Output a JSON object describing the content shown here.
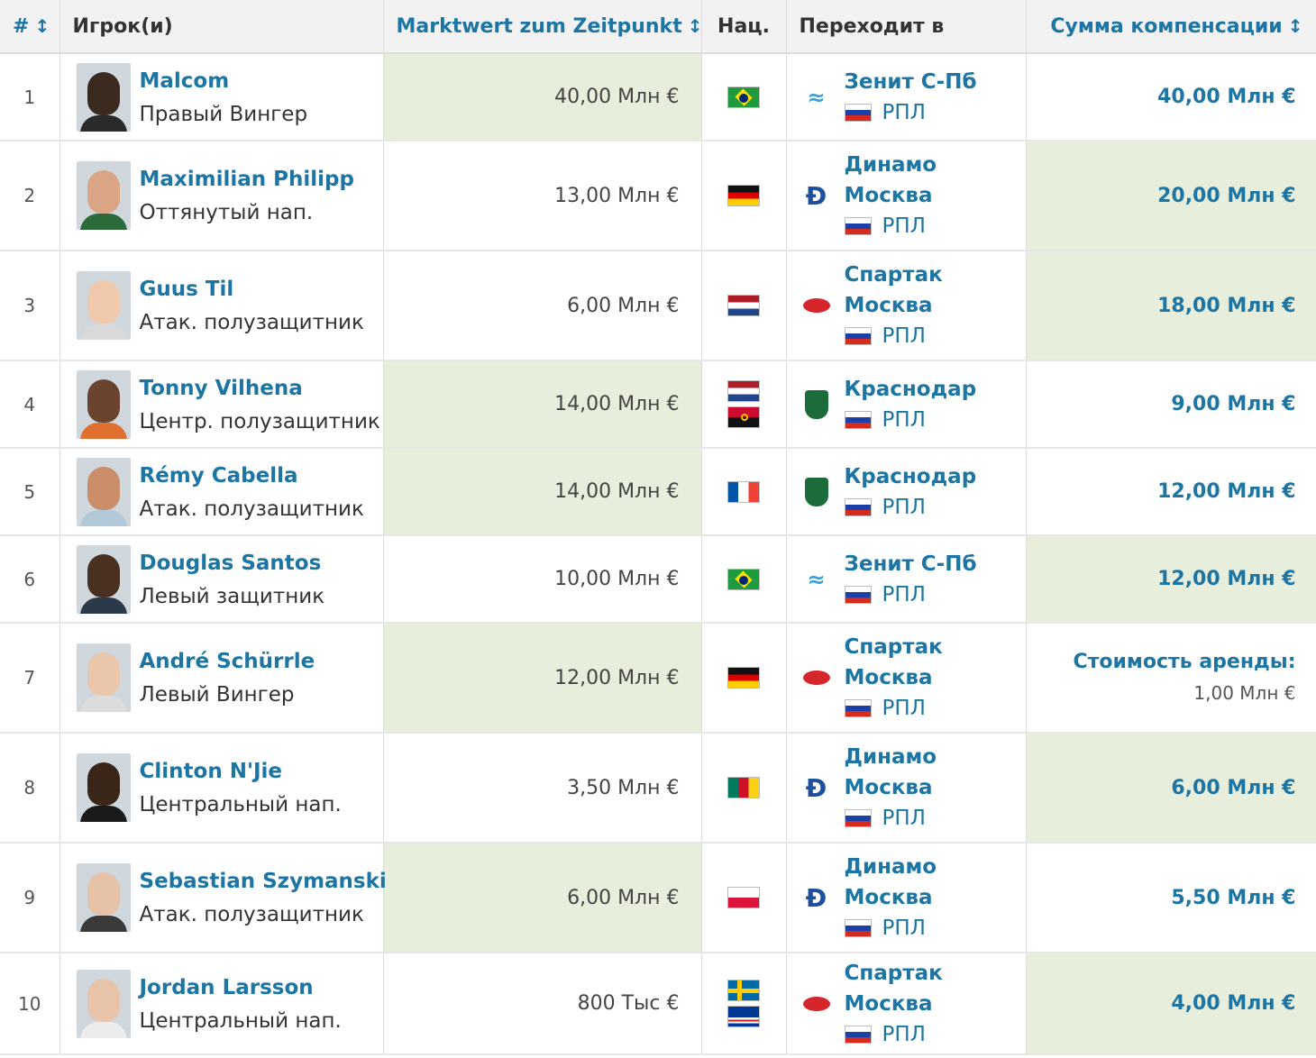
{
  "header": {
    "num": "#",
    "player": "Игрок(и)",
    "market_value": "Marktwert zum Zeitpunkt",
    "nat": "Нац.",
    "moves_to": "Переходит в",
    "fee": "Сумма компенсации",
    "sort_icon": "sort-arrows-icon"
  },
  "colors": {
    "link": "#1d75a3",
    "highlight": "#e8eedc",
    "header_bg": "#f2f2f2"
  },
  "rows": [
    {
      "num": "1",
      "name": "Malcom",
      "position": "Правый Вингер",
      "market_value": "40,00 Млн €",
      "flags": [
        "brazil"
      ],
      "club": [
        "Зенит С-Пб"
      ],
      "club_icon": "zenit-icon",
      "league": "РПЛ",
      "fee": "40,00 Млн €",
      "highlight": "market_value"
    },
    {
      "num": "2",
      "name": "Maximilian Philipp",
      "position": "Оттянутый нап.",
      "market_value": "13,00 Млн €",
      "flags": [
        "germany"
      ],
      "club": [
        "Динамо",
        "Москва"
      ],
      "club_icon": "dynamo-icon",
      "league": "РПЛ",
      "fee": "20,00 Млн €",
      "highlight": "fee"
    },
    {
      "num": "3",
      "name": "Guus Til",
      "position": "Атак. полузащитник",
      "market_value": "6,00 Млн €",
      "flags": [
        "netherlands"
      ],
      "club": [
        "Спартак",
        "Москва"
      ],
      "club_icon": "spartak-icon",
      "league": "РПЛ",
      "fee": "18,00 Млн €",
      "highlight": "fee"
    },
    {
      "num": "4",
      "name": "Tonny Vilhena",
      "position": "Центр. полузащитник",
      "market_value": "14,00 Млн €",
      "flags": [
        "netherlands",
        "angola"
      ],
      "club": [
        "Краснодар"
      ],
      "club_icon": "krasnodar-icon",
      "league": "РПЛ",
      "fee": "9,00 Млн €",
      "highlight": "market_value"
    },
    {
      "num": "5",
      "name": "Rémy Cabella",
      "position": "Атак. полузащитник",
      "market_value": "14,00 Млн €",
      "flags": [
        "france"
      ],
      "club": [
        "Краснодар"
      ],
      "club_icon": "krasnodar-icon",
      "league": "РПЛ",
      "fee": "12,00 Млн €",
      "highlight": "market_value"
    },
    {
      "num": "6",
      "name": "Douglas Santos",
      "position": "Левый защитник",
      "market_value": "10,00 Млн €",
      "flags": [
        "brazil"
      ],
      "club": [
        "Зенит С-Пб"
      ],
      "club_icon": "zenit-icon",
      "league": "РПЛ",
      "fee": "12,00 Млн €",
      "highlight": "fee"
    },
    {
      "num": "7",
      "name": "André Schürrle",
      "position": "Левый Вингер",
      "market_value": "12,00 Млн €",
      "flags": [
        "germany"
      ],
      "club": [
        "Спартак",
        "Москва"
      ],
      "club_icon": "spartak-icon",
      "league": "РПЛ",
      "fee": "",
      "fee_loan_label": "Стоимость аренды:",
      "fee_loan_value": "1,00 Млн €",
      "highlight": "market_value"
    },
    {
      "num": "8",
      "name": "Clinton N'Jie",
      "position": "Центральный нап.",
      "market_value": "3,50 Млн €",
      "flags": [
        "cameroon"
      ],
      "club": [
        "Динамо",
        "Москва"
      ],
      "club_icon": "dynamo-icon",
      "league": "РПЛ",
      "fee": "6,00 Млн €",
      "highlight": "fee"
    },
    {
      "num": "9",
      "name": "Sebastian Szymanski",
      "position": "Атак. полузащитник",
      "market_value": "6,00 Млн €",
      "flags": [
        "poland"
      ],
      "club": [
        "Динамо",
        "Москва"
      ],
      "club_icon": "dynamo-icon",
      "league": "РПЛ",
      "fee": "5,50 Млн €",
      "highlight": "market_value"
    },
    {
      "num": "10",
      "name": "Jordan Larsson",
      "position": "Центральный нап.",
      "market_value": "800 Тыс €",
      "flags": [
        "sweden",
        "cape-verde"
      ],
      "club": [
        "Спартак",
        "Москва"
      ],
      "club_icon": "spartak-icon",
      "league": "РПЛ",
      "fee": "4,00 Млн €",
      "highlight": "fee"
    }
  ]
}
